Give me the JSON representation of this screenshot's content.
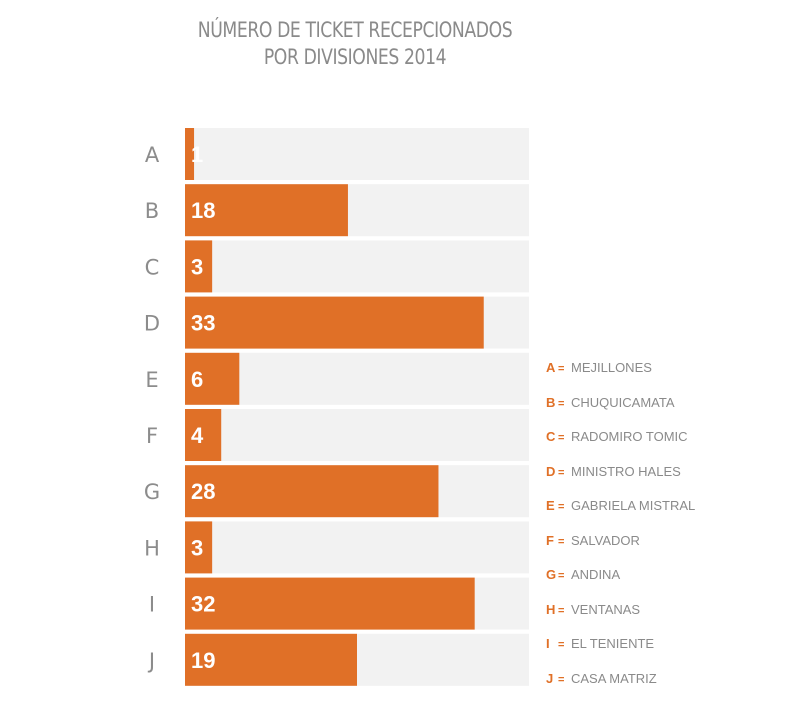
{
  "title": {
    "line1": "NÚMERO DE TICKET RECEPCIONADOS",
    "line2": "POR DIVISIONES 2014"
  },
  "colors": {
    "bar": "#e07027",
    "track": "#f2f2f2",
    "label": "#8c8c8c",
    "value_text": "#ffffff"
  },
  "chart_data": {
    "type": "bar",
    "orientation": "horizontal",
    "title": "NÚMERO DE TICKET RECEPCIONADOS POR DIVISIONES 2014",
    "categories": [
      "A",
      "B",
      "C",
      "D",
      "E",
      "F",
      "G",
      "H",
      "I",
      "J"
    ],
    "values": [
      1,
      18,
      3,
      33,
      6,
      4,
      28,
      3,
      32,
      19
    ],
    "xlim": [
      0,
      38
    ],
    "grid": false,
    "data_labels": true,
    "legend_position": "right"
  },
  "legend": [
    {
      "key": "A",
      "eq": "=",
      "name": "MEJILLONES"
    },
    {
      "key": "B",
      "eq": "=",
      "name": "CHUQUICAMATA"
    },
    {
      "key": "C",
      "eq": "=",
      "name": "RADOMIRO TOMIC"
    },
    {
      "key": "D",
      "eq": "=",
      "name": "MINISTRO HALES"
    },
    {
      "key": "E",
      "eq": "=",
      "name": "GABRIELA MISTRAL"
    },
    {
      "key": "F",
      "eq": "=",
      "name": "SALVADOR"
    },
    {
      "key": "G",
      "eq": "=",
      "name": "ANDINA"
    },
    {
      "key": "H",
      "eq": "=",
      "name": "VENTANAS"
    },
    {
      "key": "I",
      "eq": "=",
      "name": "EL TENIENTE"
    },
    {
      "key": "J",
      "eq": "=",
      "name": "CASA MATRIZ"
    }
  ]
}
